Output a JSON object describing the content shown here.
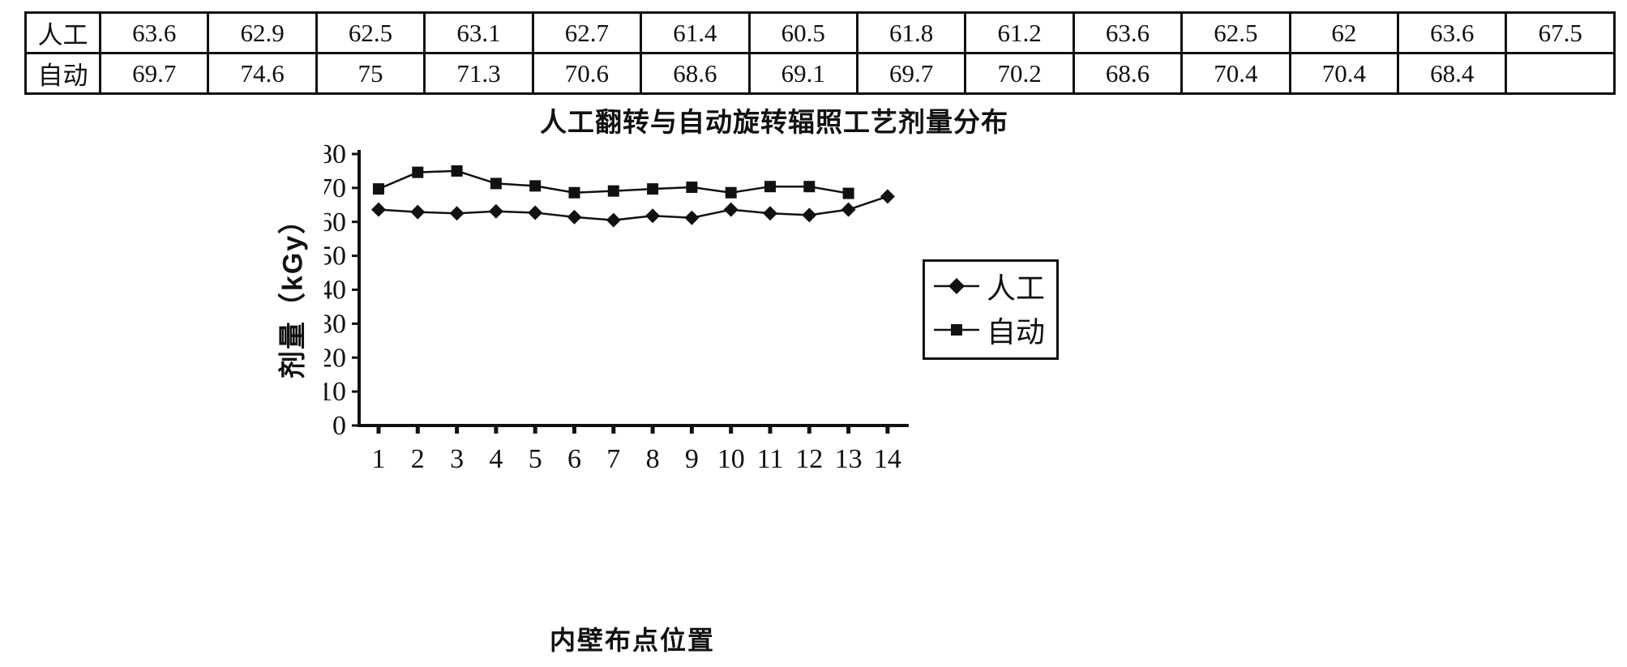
{
  "page": {
    "background": "#ffffff",
    "ink_color": "#111111"
  },
  "table": {
    "rows": [
      {
        "label": "人工",
        "values": [
          "63.6",
          "62.9",
          "62.5",
          "63.1",
          "62.7",
          "61.4",
          "60.5",
          "61.8",
          "61.2",
          "63.6",
          "62.5",
          "62",
          "63.6",
          "67.5"
        ]
      },
      {
        "label": "自动",
        "values": [
          "69.7",
          "74.6",
          "75",
          "71.3",
          "70.6",
          "68.6",
          "69.1",
          "69.7",
          "70.2",
          "68.6",
          "70.4",
          "70.4",
          "68.4",
          ""
        ]
      }
    ]
  },
  "chart_data": {
    "type": "line",
    "title": "人工翻转与自动旋转辐照工艺剂量分布",
    "xlabel": "内壁布点位置",
    "ylabel": "剂量（kGy）",
    "x": [
      1,
      2,
      3,
      4,
      5,
      6,
      7,
      8,
      9,
      10,
      11,
      12,
      13,
      14
    ],
    "ylim": [
      0,
      80
    ],
    "ytick_step": 10,
    "grid": false,
    "legend_position": "right",
    "series": [
      {
        "name": "人工",
        "marker": "diamond",
        "values": [
          63.6,
          62.9,
          62.5,
          63.1,
          62.7,
          61.4,
          60.5,
          61.8,
          61.2,
          63.6,
          62.5,
          62,
          63.6,
          67.5
        ]
      },
      {
        "name": "自动",
        "marker": "square",
        "values": [
          69.7,
          74.6,
          75,
          71.3,
          70.6,
          68.6,
          69.1,
          69.7,
          70.2,
          68.6,
          70.4,
          70.4,
          68.4,
          null
        ]
      }
    ]
  }
}
